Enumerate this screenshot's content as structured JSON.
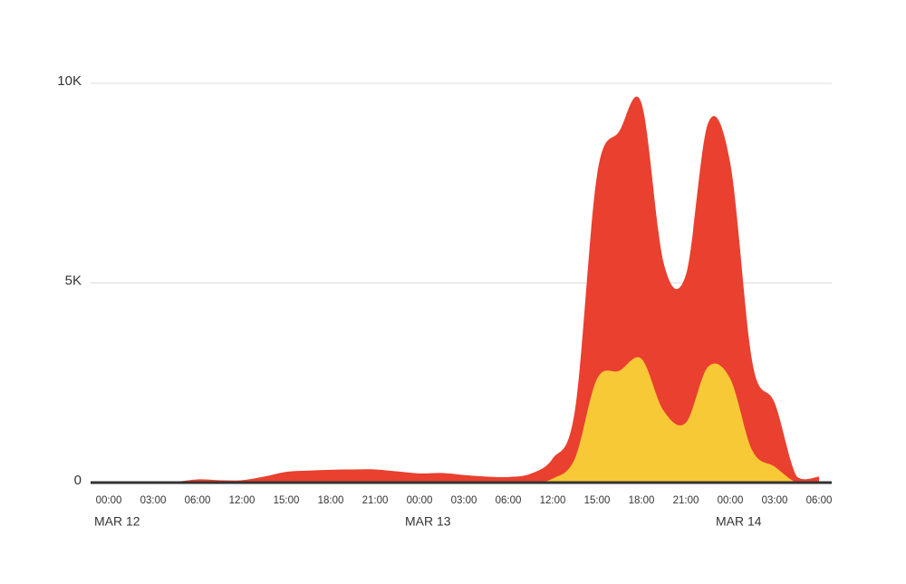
{
  "chart_data": {
    "type": "area",
    "categories": [
      "00:00",
      null,
      "03:00",
      null,
      "06:00",
      null,
      "12:00",
      null,
      "15:00",
      null,
      "18:00",
      null,
      "21:00",
      null,
      "00:00",
      null,
      "03:00",
      null,
      "06:00",
      null,
      "12:00",
      null,
      "15:00",
      null,
      "18:00",
      null,
      "21:00",
      null,
      "00:00",
      null,
      "03:00",
      null,
      "06:00"
    ],
    "date_labels": [
      {
        "text": "MAR 12",
        "category": 0
      },
      {
        "text": "MAR 13",
        "category": 14
      },
      {
        "text": "MAR 14",
        "category": 28
      }
    ],
    "series": [
      {
        "color": "#e9402f",
        "values": [
          0,
          0,
          0,
          20,
          80,
          60,
          60,
          150,
          270,
          300,
          320,
          330,
          330,
          280,
          230,
          240,
          190,
          150,
          140,
          220,
          600,
          1800,
          7700,
          8800,
          9500,
          5500,
          5200,
          9000,
          8000,
          3000,
          2000,
          150,
          150
        ]
      },
      {
        "color": "#f7c936",
        "values": [
          0,
          0,
          0,
          0,
          0,
          0,
          0,
          0,
          0,
          0,
          0,
          0,
          0,
          0,
          0,
          0,
          0,
          0,
          0,
          0,
          100,
          600,
          2600,
          2800,
          3100,
          1800,
          1500,
          2900,
          2600,
          800,
          400,
          0,
          0
        ]
      }
    ],
    "ylim": [
      0,
      10000
    ],
    "yticks": [
      0,
      {
        "value": 5000,
        "label": "5K"
      },
      {
        "value": 10000,
        "label": "10K"
      }
    ],
    "grid": true
  }
}
